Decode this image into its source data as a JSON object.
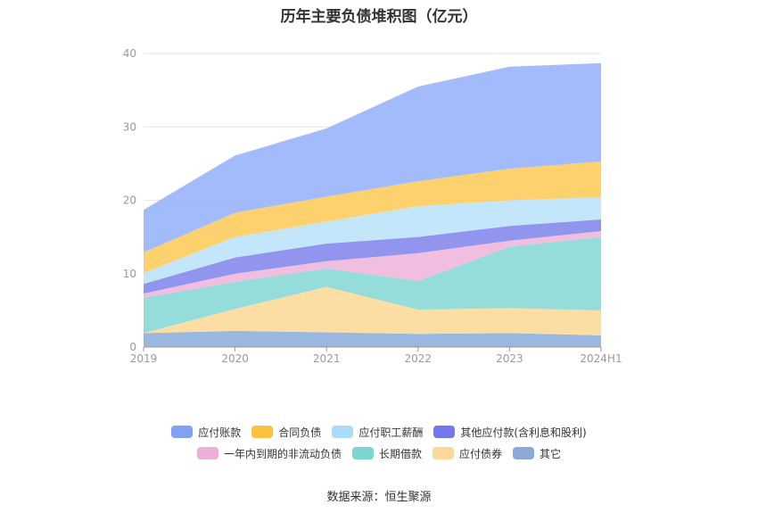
{
  "chart_data": {
    "type": "area",
    "stacked": true,
    "title": "历年主要负债堆积图（亿元）",
    "categories": [
      "2019",
      "2020",
      "2021",
      "2022",
      "2023",
      "2024H1"
    ],
    "ylim": [
      0,
      40
    ],
    "yticks": [
      0,
      10,
      20,
      30,
      40
    ],
    "grid": true,
    "legend_position": "bottom",
    "series": [
      {
        "name": "其它",
        "color": "#8fb0dc",
        "values": [
          1.9,
          2.2,
          2.0,
          1.8,
          1.9,
          1.6
        ]
      },
      {
        "name": "应付债券",
        "color": "#fcd99a",
        "values": [
          0.0,
          3.0,
          6.2,
          3.3,
          3.4,
          3.4
        ]
      },
      {
        "name": "长期借款",
        "color": "#8ad9d6",
        "values": [
          4.8,
          3.7,
          2.5,
          3.9,
          8.4,
          10.0
        ]
      },
      {
        "name": "一年内到期的非流动负债",
        "color": "#f1b7dc",
        "values": [
          0.6,
          1.1,
          1.0,
          3.8,
          0.8,
          0.8
        ]
      },
      {
        "name": "其他应付款(含利息和股利)",
        "color": "#8589ec",
        "values": [
          1.3,
          2.2,
          2.4,
          2.2,
          2.0,
          1.6
        ]
      },
      {
        "name": "应付职工薪酬",
        "color": "#bce3fa",
        "values": [
          1.5,
          2.8,
          3.0,
          4.2,
          3.5,
          3.0
        ]
      },
      {
        "name": "合同负债",
        "color": "#fdcd5e",
        "values": [
          2.8,
          3.3,
          3.4,
          3.4,
          4.3,
          4.9
        ]
      },
      {
        "name": "应付账款",
        "color": "#9ab4fb",
        "values": [
          5.8,
          7.8,
          9.3,
          12.9,
          13.9,
          13.4
        ]
      }
    ]
  },
  "legend": {
    "row1": [
      {
        "label": "应付账款",
        "color": "#7fa2f7"
      },
      {
        "label": "合同负债",
        "color": "#fcc23f"
      },
      {
        "label": "应付职工薪酬",
        "color": "#a8dcf8"
      },
      {
        "label": "其他应付款(含利息和股利)",
        "color": "#7377ea"
      }
    ],
    "row2": [
      {
        "label": "一年内到期的非流动负债",
        "color": "#eab0d8"
      },
      {
        "label": "长期借款",
        "color": "#7ed4d0"
      },
      {
        "label": "应付债券",
        "color": "#fcd99a"
      },
      {
        "label": "其它",
        "color": "#8aa9d8"
      }
    ]
  },
  "source": "数据来源：恒生聚源"
}
